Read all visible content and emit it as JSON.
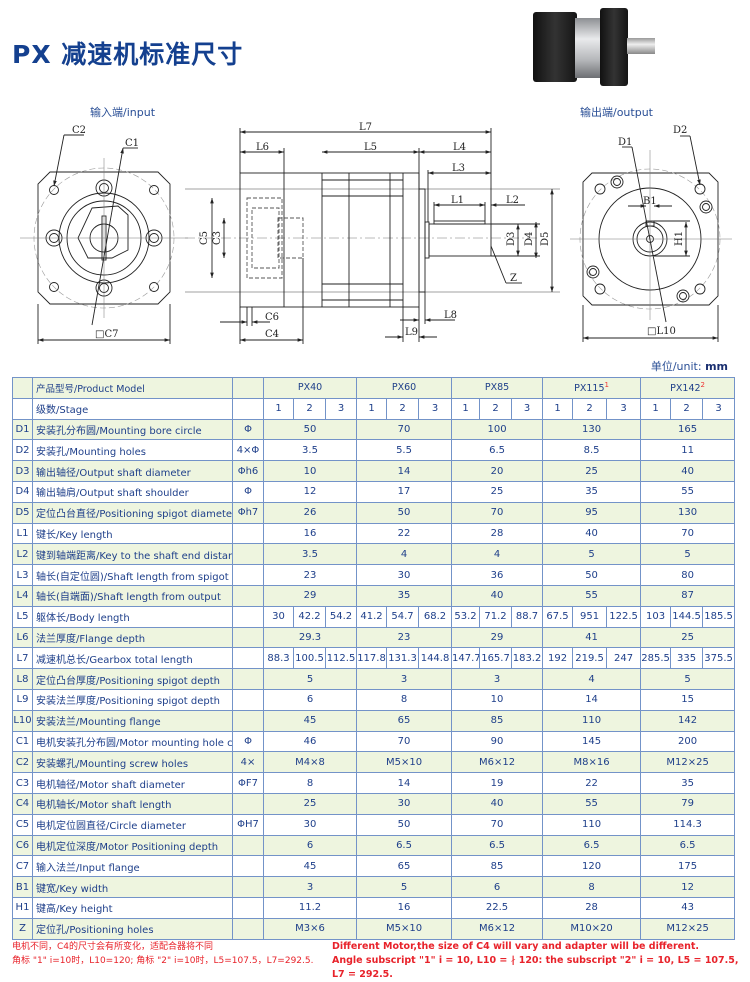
{
  "title": "PX 减速机标准尺寸",
  "views": {
    "input_label": "输入端/input",
    "output_label": "输出端/output",
    "input_dims": {
      "c2": "C2",
      "c1": "C1",
      "c7": "□C7"
    },
    "side_dims": {
      "l7": "L7",
      "l6": "L6",
      "l5": "L5",
      "l4": "L4",
      "l3": "L3",
      "l1": "L1",
      "l2": "L2",
      "c5": "C5",
      "c3": "C3",
      "d3": "D3",
      "d4": "D4",
      "d5": "D5",
      "z": "Z",
      "c6": "C6",
      "c4": "C4",
      "l8": "L8",
      "l9": "L9"
    },
    "output_dims": {
      "d1": "D1",
      "d2": "D2",
      "b1": "B1",
      "h1": "H1",
      "l10": "□L10"
    }
  },
  "unit": {
    "label": "单位/unit:",
    "value": "mm"
  },
  "colors": {
    "border": "#7393c8",
    "shade": "#eef5df",
    "text": "#1e3f8a",
    "note": "#e8222a",
    "title": "#14408f"
  },
  "table": {
    "header_label": "产品型号/Product Model",
    "models": [
      {
        "name": "PX40",
        "sup": ""
      },
      {
        "name": "PX60",
        "sup": ""
      },
      {
        "name": "PX85",
        "sup": ""
      },
      {
        "name": "PX115",
        "sup": "1"
      },
      {
        "name": "PX142",
        "sup": "2"
      }
    ],
    "stage_label": "级数/Stage",
    "stages": [
      "1",
      "2",
      "3"
    ],
    "rows": [
      {
        "code": "D1",
        "label": "安装孔分布圆/Mounting bore circle",
        "sym": "Φ",
        "values": [
          "50",
          "70",
          "100",
          "130",
          "165"
        ]
      },
      {
        "code": "D2",
        "label": "安装孔/Mounting holes",
        "sym": "4×Φ",
        "values": [
          "3.5",
          "5.5",
          "6.5",
          "8.5",
          "11"
        ]
      },
      {
        "code": "D3",
        "label": "输出轴径/Output shaft diameter",
        "sym": "Φh6",
        "values": [
          "10",
          "14",
          "20",
          "25",
          "40"
        ]
      },
      {
        "code": "D4",
        "label": "输出轴肩/Output shaft shoulder",
        "sym": "Φ",
        "values": [
          "12",
          "17",
          "25",
          "35",
          "55"
        ]
      },
      {
        "code": "D5",
        "label": "定位凸台直径/Positioning spigot diameter",
        "sym": "Φh7",
        "values": [
          "26",
          "50",
          "70",
          "95",
          "130"
        ]
      },
      {
        "code": "L1",
        "label": "键长/Key length",
        "sym": "",
        "values": [
          "16",
          "22",
          "28",
          "40",
          "70"
        ]
      },
      {
        "code": "L2",
        "label": "键到轴端距离/Key to the shaft end distance",
        "sym": "",
        "values": [
          "3.5",
          "4",
          "4",
          "5",
          "5"
        ]
      },
      {
        "code": "L3",
        "label": "轴长(自定位圆)/Shaft length from spigot",
        "sym": "",
        "values": [
          "23",
          "30",
          "36",
          "50",
          "80"
        ]
      },
      {
        "code": "L4",
        "label": "轴长(自端面)/Shaft length from output",
        "sym": "",
        "values": [
          "29",
          "35",
          "40",
          "55",
          "87"
        ]
      },
      {
        "code": "L5",
        "label": "躯体长/Body length",
        "sym": "",
        "values": [
          "30",
          "42.2",
          "54.2",
          "41.2",
          "54.7",
          "68.2",
          "53.2",
          "71.2",
          "88.7",
          "67.5",
          "951",
          "122.5",
          "103",
          "144.5",
          "185.5"
        ]
      },
      {
        "code": "L6",
        "label": "法兰厚度/Flange depth",
        "sym": "",
        "values": [
          "29.3",
          "23",
          "29",
          "41",
          "25"
        ]
      },
      {
        "code": "L7",
        "label": "减速机总长/Gearbox total length",
        "sym": "",
        "values": [
          "88.3",
          "100.5",
          "112.5",
          "117.8",
          "131.3",
          "144.8",
          "147.7",
          "165.7",
          "183.2",
          "192",
          "219.5",
          "247",
          "285.5",
          "335",
          "375.5"
        ]
      },
      {
        "code": "L8",
        "label": "定位凸台厚度/Positioning spigot depth",
        "sym": "",
        "values": [
          "5",
          "3",
          "3",
          "4",
          "5"
        ]
      },
      {
        "code": "L9",
        "label": "安装法兰厚度/Positioning spigot depth",
        "sym": "",
        "values": [
          "6",
          "8",
          "10",
          "14",
          "15"
        ]
      },
      {
        "code": "L10",
        "label": "安装法兰/Mounting flange",
        "sym": "",
        "values": [
          "45",
          "65",
          "85",
          "110",
          "142"
        ]
      },
      {
        "code": "C1",
        "label": "电机安装孔分布圆/Motor mounting hole circle",
        "sym": "Φ",
        "values": [
          "46",
          "70",
          "90",
          "145",
          "200"
        ]
      },
      {
        "code": "C2",
        "label": "安装螺孔/Mounting screw holes",
        "sym": "4×",
        "values": [
          "M4×8",
          "M5×10",
          "M6×12",
          "M8×16",
          "M12×25"
        ]
      },
      {
        "code": "C3",
        "label": "电机轴径/Motor shaft diameter",
        "sym": "ΦF7",
        "values": [
          "8",
          "14",
          "19",
          "22",
          "35"
        ]
      },
      {
        "code": "C4",
        "label": "电机轴长/Motor shaft length",
        "sym": "",
        "values": [
          "25",
          "30",
          "40",
          "55",
          "79"
        ]
      },
      {
        "code": "C5",
        "label": "电机定位圆直径/Circle diameter",
        "sym": "ΦH7",
        "values": [
          "30",
          "50",
          "70",
          "110",
          "114.3"
        ]
      },
      {
        "code": "C6",
        "label": "电机定位深度/Motor Positioning depth",
        "sym": "",
        "values": [
          "6",
          "6.5",
          "6.5",
          "6.5",
          "6.5"
        ]
      },
      {
        "code": "C7",
        "label": "输入法兰/Input flange",
        "sym": "",
        "values": [
          "45",
          "65",
          "85",
          "120",
          "175"
        ]
      },
      {
        "code": "B1",
        "label": "键宽/Key width",
        "sym": "",
        "values": [
          "3",
          "5",
          "6",
          "8",
          "12"
        ]
      },
      {
        "code": "H1",
        "label": "键高/Key height",
        "sym": "",
        "values": [
          "11.2",
          "16",
          "22.5",
          "28",
          "43"
        ]
      },
      {
        "code": "Z",
        "label": "定位孔/Positioning holes",
        "sym": "",
        "values": [
          "M3×6",
          "M5×10",
          "M6×12",
          "M10×20",
          "M12×25"
        ]
      }
    ]
  },
  "notes": {
    "cn_line1": "电机不同，C4的尺寸会有所变化，适配合器将不同",
    "cn_line2": "角标 \"1\"  i=10时，L10=120;   角标 \"2\"  i=10时，L5=107.5，L7=292.5.",
    "en_line1": "Different Motor,the size of C4 will vary and adapter will be different.",
    "en_line2": "Angle subscript \"1\" i = 10, L10 = ∤ 120: the subscript \"2\" i = 10, L5 = 107.5, L7 = 292.5."
  }
}
